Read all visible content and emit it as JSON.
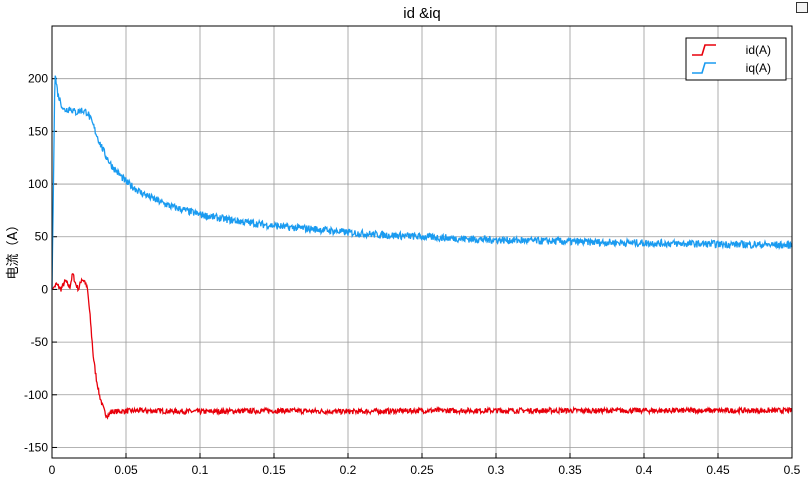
{
  "chart_data": {
    "type": "line",
    "title": "id &iq",
    "xlabel": "",
    "ylabel": "电流（A）",
    "xlim": [
      0,
      0.5
    ],
    "ylim": [
      -160,
      250
    ],
    "grid": true,
    "legend_position": "top-right",
    "x_ticks": [
      "0",
      "0.05",
      "0.1",
      "0.15",
      "0.2",
      "0.25",
      "0.3",
      "0.35",
      "0.4",
      "0.45",
      "0.5"
    ],
    "y_ticks": [
      "200",
      "150",
      "100",
      "50",
      "0",
      "-50",
      "-100",
      "-150"
    ],
    "series": [
      {
        "name": "id(A)",
        "color": "#e8000b",
        "points": [
          [
            0,
            0
          ],
          [
            0.003,
            5
          ],
          [
            0.006,
            0
          ],
          [
            0.009,
            8
          ],
          [
            0.012,
            2
          ],
          [
            0.014,
            15
          ],
          [
            0.016,
            5
          ],
          [
            0.018,
            0
          ],
          [
            0.02,
            10
          ],
          [
            0.022,
            8
          ],
          [
            0.024,
            0
          ],
          [
            0.026,
            -30
          ],
          [
            0.028,
            -65
          ],
          [
            0.03,
            -85
          ],
          [
            0.032,
            -100
          ],
          [
            0.034,
            -110
          ],
          [
            0.036,
            -118
          ],
          [
            0.038,
            -120
          ],
          [
            0.04,
            -116
          ],
          [
            0.06,
            -115
          ],
          [
            0.1,
            -116
          ],
          [
            0.15,
            -115
          ],
          [
            0.2,
            -116
          ],
          [
            0.25,
            -115
          ],
          [
            0.3,
            -115
          ],
          [
            0.35,
            -115
          ],
          [
            0.4,
            -115
          ],
          [
            0.45,
            -115
          ],
          [
            0.5,
            -115
          ]
        ]
      },
      {
        "name": "iq(A)",
        "color": "#1a9bf0",
        "points": [
          [
            0,
            0
          ],
          [
            0.002,
            205
          ],
          [
            0.004,
            185
          ],
          [
            0.008,
            170
          ],
          [
            0.012,
            172
          ],
          [
            0.016,
            168
          ],
          [
            0.02,
            170
          ],
          [
            0.024,
            168
          ],
          [
            0.028,
            155
          ],
          [
            0.032,
            140
          ],
          [
            0.036,
            128
          ],
          [
            0.04,
            118
          ],
          [
            0.045,
            110
          ],
          [
            0.05,
            102
          ],
          [
            0.06,
            92
          ],
          [
            0.07,
            85
          ],
          [
            0.08,
            79
          ],
          [
            0.09,
            75
          ],
          [
            0.1,
            71
          ],
          [
            0.12,
            66
          ],
          [
            0.14,
            62
          ],
          [
            0.16,
            59
          ],
          [
            0.18,
            57
          ],
          [
            0.2,
            54
          ],
          [
            0.22,
            52
          ],
          [
            0.25,
            50
          ],
          [
            0.28,
            48
          ],
          [
            0.3,
            47
          ],
          [
            0.33,
            46
          ],
          [
            0.36,
            45
          ],
          [
            0.4,
            44
          ],
          [
            0.45,
            43
          ],
          [
            0.5,
            42
          ]
        ]
      }
    ]
  }
}
